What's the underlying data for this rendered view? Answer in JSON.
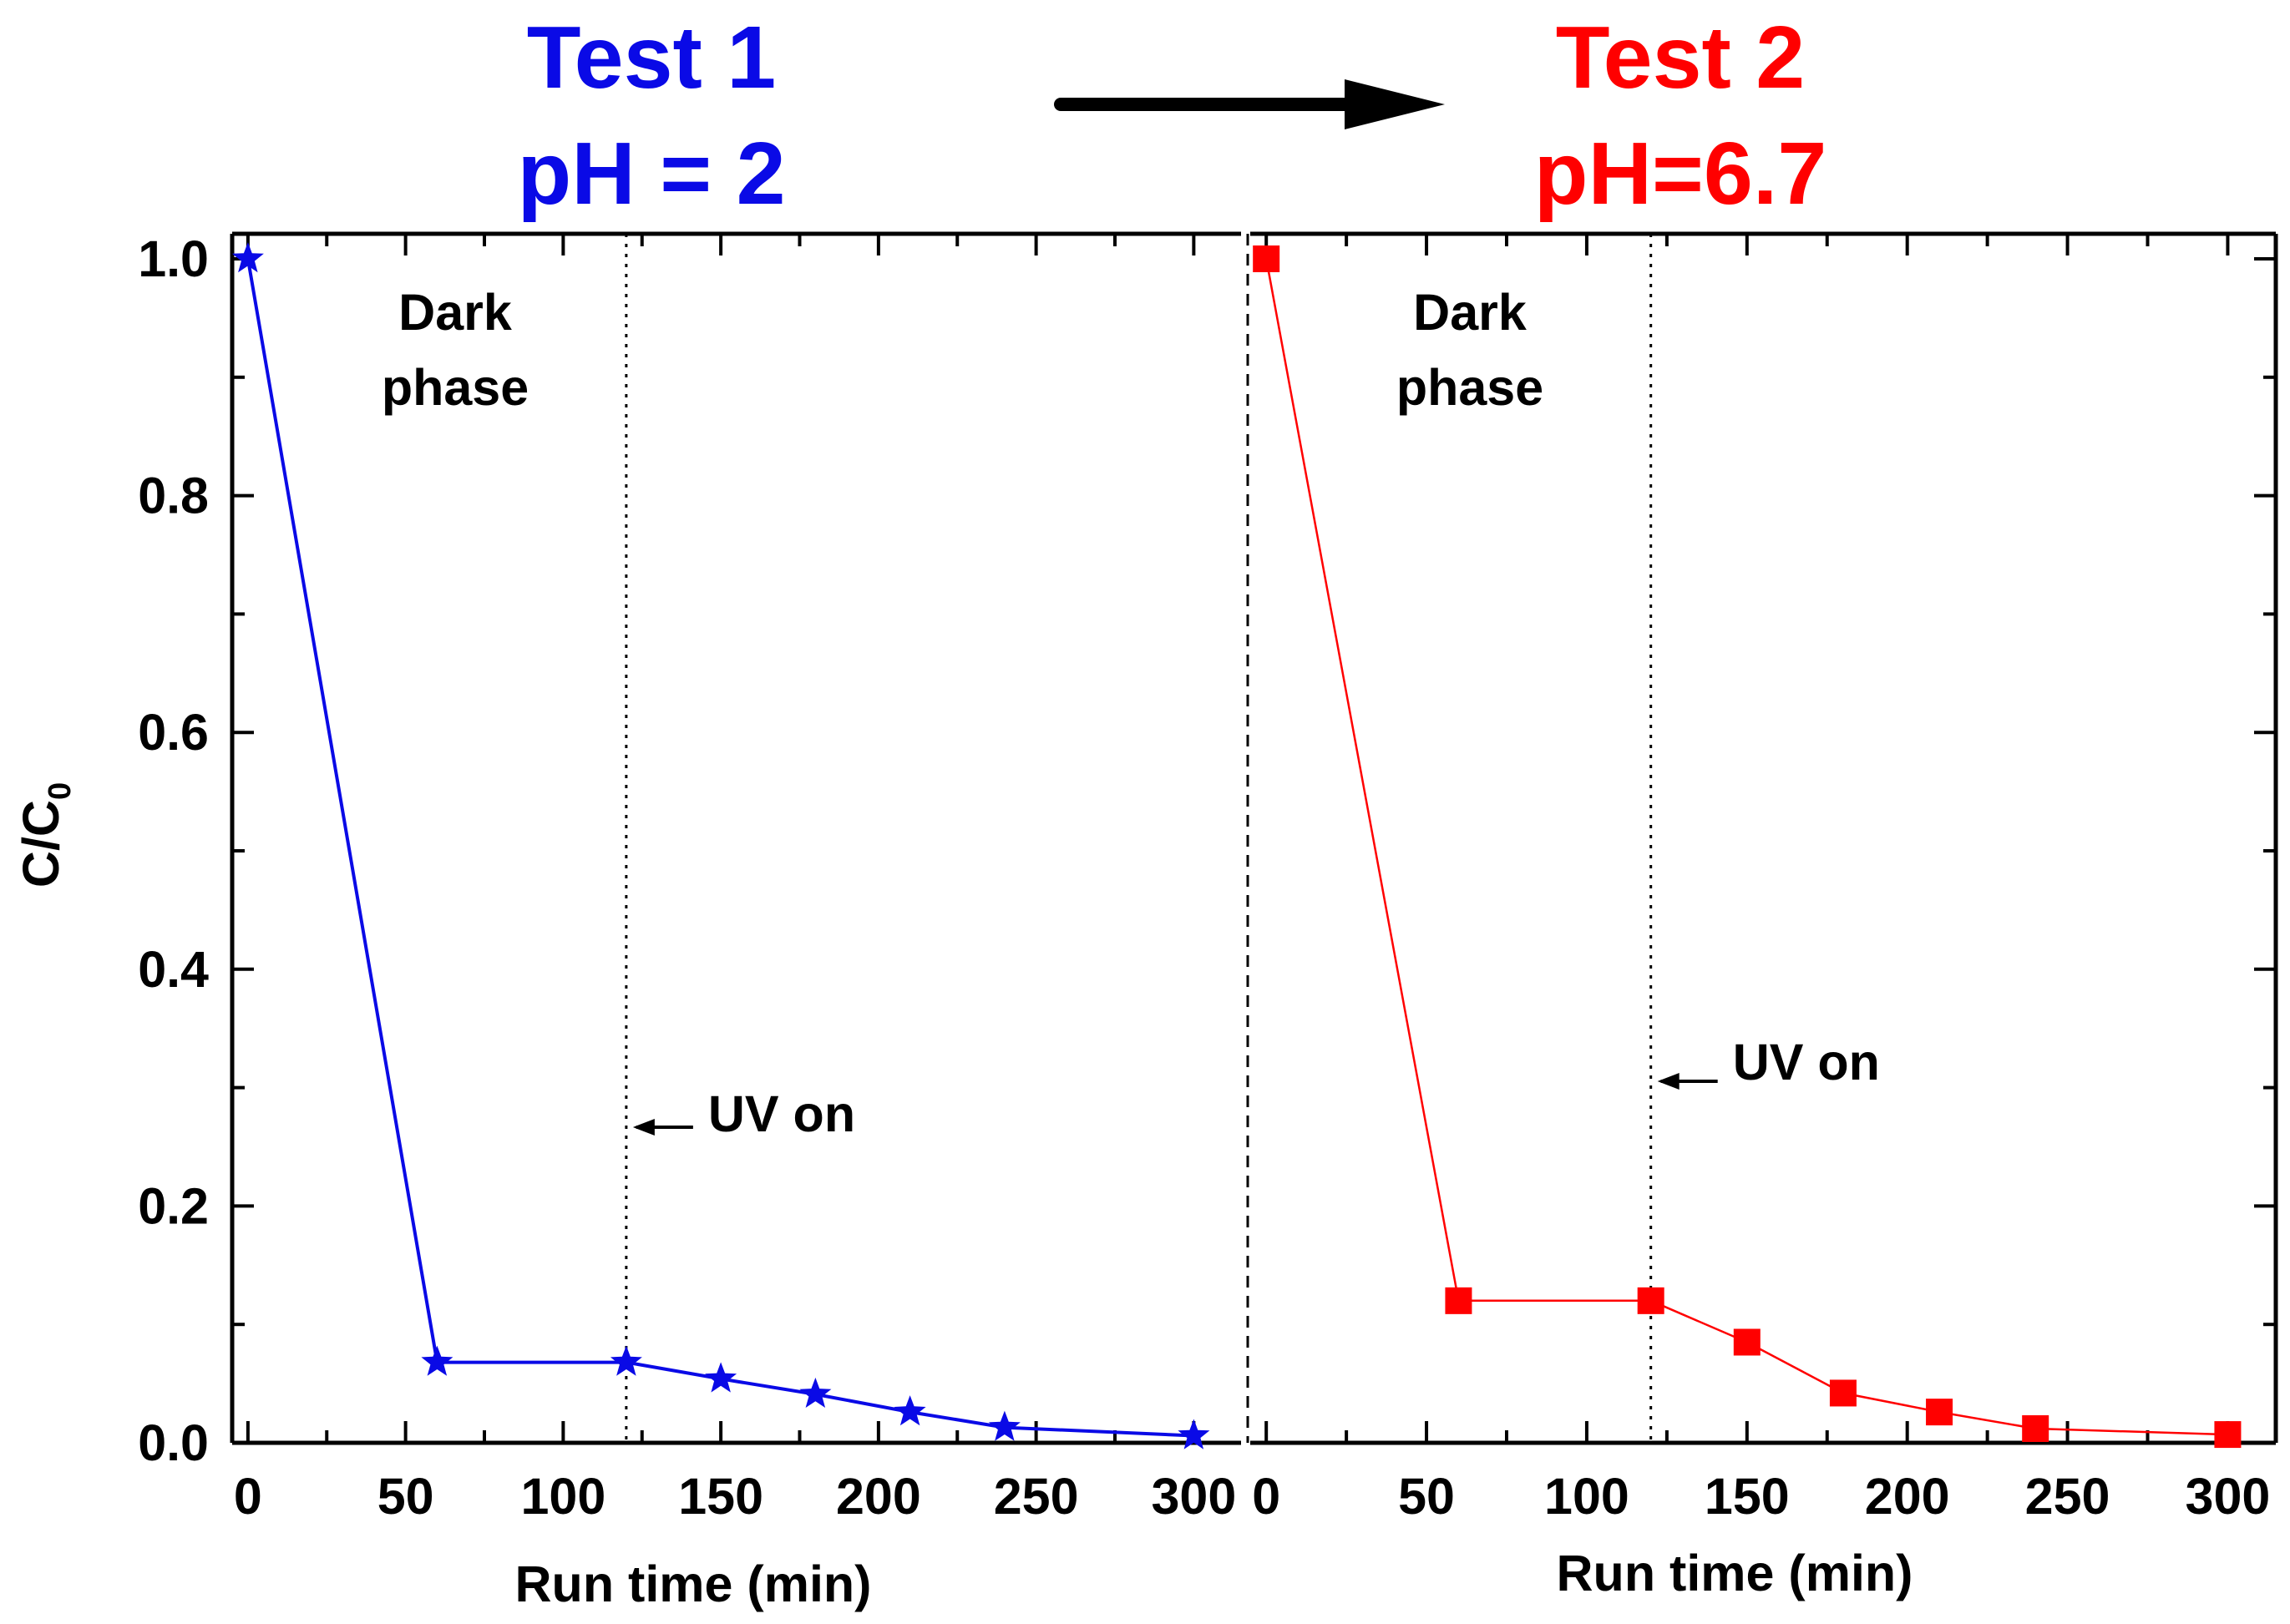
{
  "headings": {
    "left": {
      "line1": "Test 1",
      "line2": "pH = 2",
      "color": "#0a0ae6"
    },
    "right": {
      "line1": "Test 2",
      "line2": "pH=6.7",
      "color": "#ff0000"
    }
  },
  "colors": {
    "series1": "#0a0ae6",
    "series2": "#ff0000",
    "axis": "#000000"
  },
  "chart_data": [
    {
      "type": "line",
      "title": "Test 1 pH = 2",
      "xlabel": "Run time (min)",
      "ylabel": "C/C",
      "ylabel_subscript": "0",
      "xlim": [
        -5,
        315
      ],
      "ylim": [
        0,
        1.0
      ],
      "x_ticks": [
        "0",
        "50",
        "100",
        "150",
        "200",
        "250",
        "300"
      ],
      "y_ticks": [
        "0.0",
        "0.2",
        "0.4",
        "0.6",
        "0.8",
        "1.0"
      ],
      "series": [
        {
          "marker": "star",
          "x": [
            0,
            60,
            120,
            150,
            180,
            210,
            240,
            300
          ],
          "y": [
            1.0,
            0.068,
            0.068,
            0.054,
            0.041,
            0.026,
            0.013,
            0.006
          ]
        }
      ],
      "annotations": {
        "dark_line1": "Dark",
        "dark_line2": "phase",
        "uv": "UV on",
        "uv_time": 120
      }
    },
    {
      "type": "line",
      "title": "Test 2 pH=6.7",
      "xlabel": "Run time (min)",
      "xlim": [
        -5,
        315
      ],
      "ylim": [
        0,
        1.0
      ],
      "x_ticks": [
        "0",
        "50",
        "100",
        "150",
        "200",
        "250",
        "300"
      ],
      "series": [
        {
          "marker": "square",
          "x": [
            0,
            60,
            120,
            150,
            180,
            210,
            240,
            300
          ],
          "y": [
            1.0,
            0.12,
            0.12,
            0.085,
            0.042,
            0.026,
            0.012,
            0.007
          ]
        }
      ],
      "annotations": {
        "dark_line1": "Dark",
        "dark_line2": "phase",
        "uv": "UV on",
        "uv_time": 120
      }
    }
  ]
}
